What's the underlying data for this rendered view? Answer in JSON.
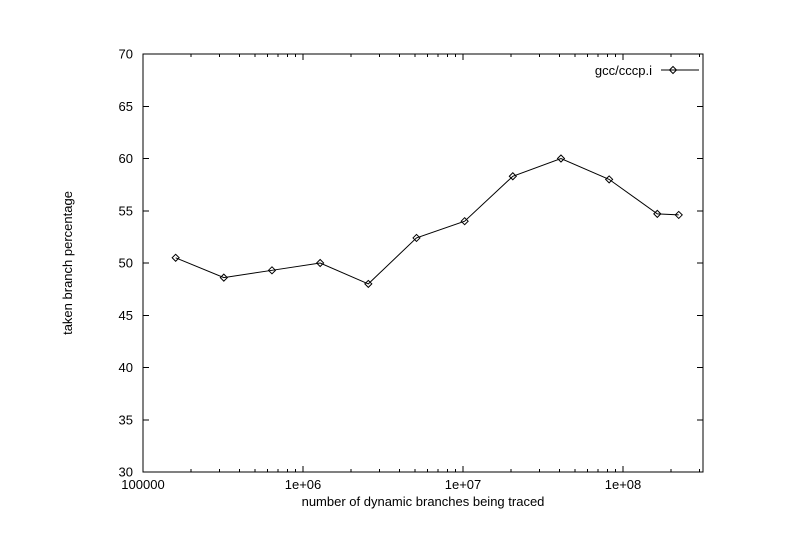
{
  "chart_data": {
    "type": "line",
    "title": "",
    "xlabel": "number of dynamic branches being traced",
    "ylabel": "taken branch percentage",
    "x_scale": "log10",
    "xlim": [
      100000,
      316227766
    ],
    "ylim": [
      30,
      70
    ],
    "x_major_ticks": [
      {
        "value": 100000,
        "label": "100000"
      },
      {
        "value": 1000000,
        "label": "1e+06"
      },
      {
        "value": 10000000,
        "label": "1e+07"
      },
      {
        "value": 100000000,
        "label": "1e+08"
      }
    ],
    "y_ticks": [
      30,
      35,
      40,
      45,
      50,
      55,
      60,
      65,
      70
    ],
    "grid": false,
    "legend": {
      "position": "top-right-inside",
      "entries": [
        {
          "label": "gcc/cccp.i",
          "marker": "open-diamond"
        }
      ]
    },
    "series": [
      {
        "name": "gcc/cccp.i",
        "marker": "open-diamond",
        "color": "#000000",
        "x": [
          160000,
          320000,
          640000,
          1280000,
          2560000,
          5120000,
          10240000,
          20480000,
          40960000,
          81920000,
          163840000,
          223000000
        ],
        "y": [
          50.5,
          48.6,
          49.3,
          50.0,
          48.0,
          52.4,
          54.0,
          58.3,
          60.0,
          58.0,
          54.7,
          54.6
        ]
      }
    ]
  },
  "colors": {
    "background": "#ffffff",
    "axis": "#000000",
    "line": "#000000"
  }
}
